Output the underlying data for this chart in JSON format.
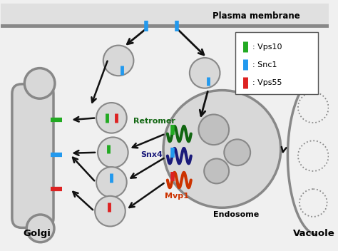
{
  "background_color": "#f0f0f0",
  "membrane_bar_color": "#d8d8d8",
  "plasma_membrane_line_color": "#888888",
  "plasma_membrane_label": "Plasma membrane",
  "golgi_label": "Golgi",
  "vacuole_label": "Vacuole",
  "endosome_label": "Endosome",
  "retromer_label": "Retromer",
  "snx4_label": "Snx4",
  "mvp1_label": "Mvp1",
  "legend_entries": [
    {
      "color": "#22aa22",
      "label": "Vps10"
    },
    {
      "color": "#2299ee",
      "label": "Snc1"
    },
    {
      "color": "#dd2222",
      "label": "Vps55"
    }
  ],
  "vesicle_face": "#d8d8d8",
  "vesicle_edge": "#888888",
  "arrow_color": "#111111",
  "green": "#22aa22",
  "cyan": "#2299ee",
  "red": "#dd2222",
  "dark_navy": "#1a1a7a",
  "dark_green": "#116611",
  "orange_red": "#cc3300"
}
